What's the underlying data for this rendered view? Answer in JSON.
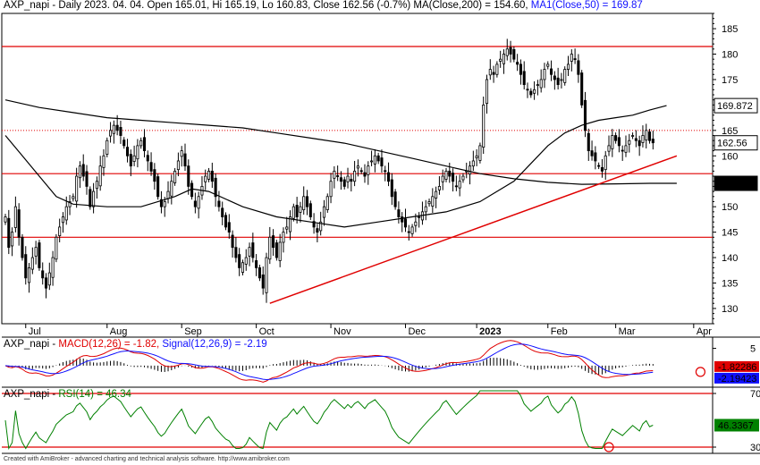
{
  "header": {
    "title": "AXP_napi - Daily 2023. 04. 04. Open 165.01, Hi 165.19, Lo 160.83, Close 162.56 (-0.7%)",
    "ma200": "MA(Close,200) = 154.60,",
    "ma50": "MA1(Close,50) = 169.87"
  },
  "macd_header": {
    "prefix": "AXP_napi - ",
    "macd": "MACD(12,26) = -1.82,",
    "signal": "Signal(12,26,9) = -2.19"
  },
  "rsi_header": {
    "prefix": "AXP_napi - ",
    "rsi": "RSI(14) = 46.34"
  },
  "footer": {
    "credit": "Created with AmiBroker - advanced charting and technical analysis software. http://www.amibroker.com"
  },
  "colors": {
    "up": "#ffffff",
    "down": "#000000",
    "level": "#e00000",
    "trend": "#e00000",
    "macd": "#e00000",
    "signal": "#1010ff",
    "rsi": "#008000"
  },
  "chart_data": [
    {
      "type": "candlestick",
      "ylim": [
        127,
        188
      ],
      "yticks": [
        130,
        135,
        140,
        145,
        150,
        155,
        160,
        165,
        170,
        175,
        180,
        185
      ],
      "xticks": [
        {
          "label": "Jul",
          "day": 6
        },
        {
          "label": "Aug",
          "day": 30
        },
        {
          "label": "Sep",
          "day": 52
        },
        {
          "label": "Oct",
          "day": 74
        },
        {
          "label": "Nov",
          "day": 96
        },
        {
          "label": "Dec",
          "day": 118
        },
        {
          "label": "2023",
          "day": 139
        },
        {
          "label": "Feb",
          "day": 160
        },
        {
          "label": "Mar",
          "day": 180
        },
        {
          "label": "Apr",
          "day": 203
        }
      ],
      "total_days": 208,
      "closes": [
        148,
        142,
        145,
        150,
        144,
        140,
        136,
        138,
        140,
        142,
        138,
        136,
        134,
        137,
        140,
        144,
        146,
        148,
        150,
        151,
        152,
        156,
        158,
        156,
        154,
        150,
        153,
        155,
        158,
        160,
        163,
        165,
        166,
        165,
        164,
        162,
        160,
        158,
        160,
        162,
        163,
        161,
        159,
        157,
        155,
        152,
        150,
        151,
        153,
        155,
        157,
        159,
        161,
        158,
        154,
        152,
        150,
        152,
        154,
        156,
        157,
        155,
        152,
        150,
        148,
        146,
        145,
        142,
        140,
        138,
        139,
        140,
        142,
        140,
        138,
        136,
        134,
        140,
        144,
        142,
        140,
        143,
        145,
        146,
        148,
        150,
        148,
        150,
        152,
        150,
        148,
        146,
        145,
        147,
        150,
        152,
        155,
        157,
        156,
        155,
        154,
        156,
        155,
        157,
        158,
        157,
        156,
        158,
        159,
        160,
        159,
        158,
        157,
        155,
        152,
        150,
        148,
        147,
        146,
        145,
        146,
        147,
        148,
        149,
        150,
        151,
        152,
        153,
        154,
        156,
        157,
        156,
        155,
        154,
        155,
        156,
        157,
        158,
        159,
        160,
        162,
        170,
        175,
        177,
        176,
        178,
        179,
        180,
        181,
        180,
        179,
        178,
        176,
        174,
        173,
        172,
        173,
        174,
        175,
        177,
        178,
        176,
        175,
        174,
        175,
        177,
        178,
        180,
        179,
        176,
        170,
        165,
        161,
        160,
        159,
        158,
        157,
        160,
        162,
        164,
        163,
        162,
        161,
        162,
        163,
        164,
        163,
        162,
        164,
        165,
        163,
        162.56
      ],
      "last_price": 162.56,
      "ma50_last": 169.872,
      "ma200_last": 154.596,
      "ma200": [
        [
          0,
          171
        ],
        [
          10,
          169.5
        ],
        [
          20,
          168.5
        ],
        [
          30,
          167.5
        ],
        [
          40,
          167
        ],
        [
          50,
          166.5
        ],
        [
          60,
          166
        ],
        [
          70,
          165.5
        ],
        [
          80,
          164.5
        ],
        [
          90,
          163.5
        ],
        [
          100,
          162.5
        ],
        [
          110,
          161
        ],
        [
          120,
          159.5
        ],
        [
          130,
          158
        ],
        [
          140,
          156.5
        ],
        [
          150,
          155.5
        ],
        [
          160,
          154.8
        ],
        [
          170,
          154.4
        ],
        [
          180,
          154.5
        ],
        [
          190,
          154.6
        ],
        [
          198,
          154.6
        ]
      ],
      "ma50": [
        [
          0,
          164
        ],
        [
          5,
          160
        ],
        [
          10,
          156
        ],
        [
          15,
          152
        ],
        [
          20,
          150.5
        ],
        [
          30,
          150
        ],
        [
          40,
          150
        ],
        [
          50,
          152
        ],
        [
          55,
          153.5
        ],
        [
          60,
          153
        ],
        [
          70,
          150
        ],
        [
          80,
          148
        ],
        [
          90,
          147
        ],
        [
          100,
          146
        ],
        [
          110,
          147
        ],
        [
          120,
          148
        ],
        [
          130,
          149
        ],
        [
          140,
          151
        ],
        [
          150,
          155
        ],
        [
          155,
          158.5
        ],
        [
          160,
          162
        ],
        [
          165,
          164.5
        ],
        [
          170,
          166
        ],
        [
          175,
          167
        ],
        [
          180,
          167.5
        ],
        [
          185,
          168
        ],
        [
          190,
          169
        ],
        [
          195,
          169.872
        ]
      ],
      "horizontal_levels": [
        181.5,
        165,
        156.5,
        144
      ],
      "dotted_level": 165,
      "trendline": [
        [
          78,
          131
        ],
        [
          198,
          160
        ]
      ]
    },
    {
      "type": "macd",
      "ylim": [
        -6,
        8
      ],
      "yticks": [
        5
      ],
      "macd_last": -1.82286,
      "signal_last": -2.19423,
      "macd_label": "-1.82286",
      "signal_label": "-2.19423"
    },
    {
      "type": "rsi",
      "ylim": [
        26,
        74
      ],
      "yticks": [
        70,
        30
      ],
      "levels": [
        70,
        30
      ],
      "rsi_last": 46.3367,
      "rsi_label": "46.3367"
    }
  ]
}
